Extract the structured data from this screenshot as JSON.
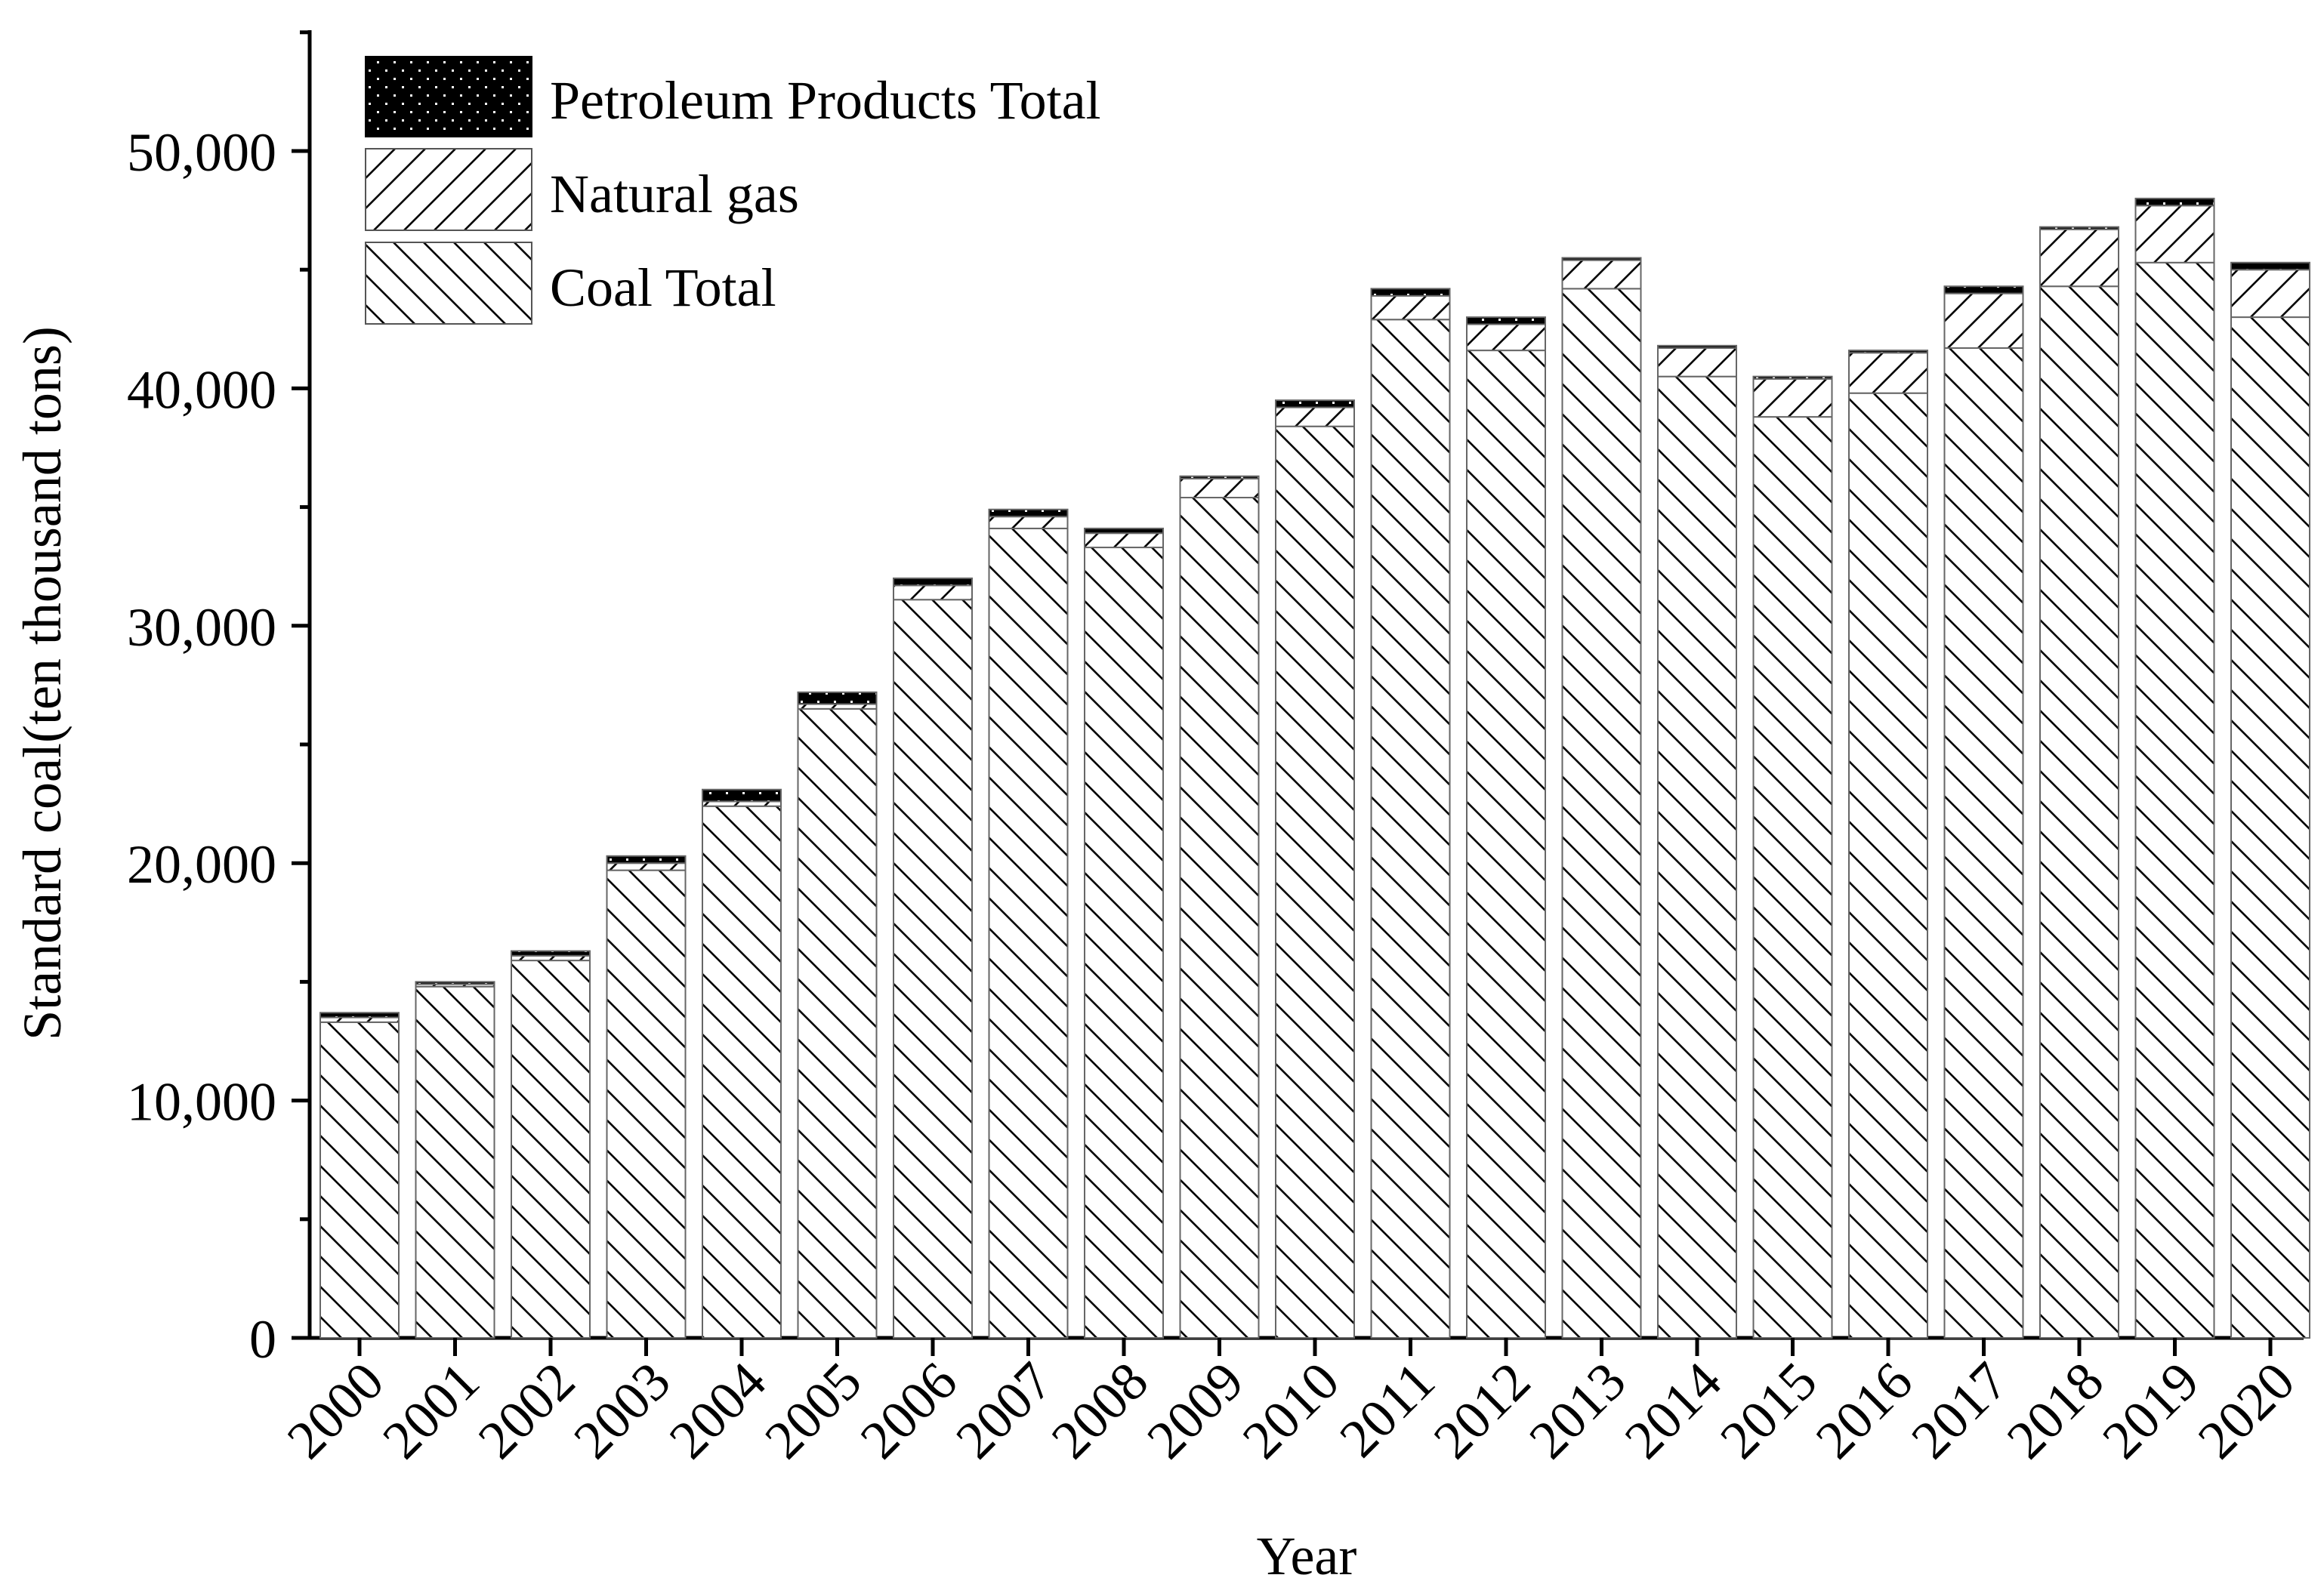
{
  "chart_data": {
    "type": "bar",
    "stacked": true,
    "title": "",
    "xlabel": "Year",
    "ylabel": "Standard coal(ten thousand tons)",
    "ylim": [
      0,
      55000
    ],
    "yticks": [
      0,
      10000,
      20000,
      30000,
      40000,
      50000
    ],
    "ytick_labels": [
      "0",
      "10,000",
      "20,000",
      "30,000",
      "40,000",
      "50,000"
    ],
    "categories": [
      "2000",
      "2001",
      "2002",
      "2003",
      "2004",
      "2005",
      "2006",
      "2007",
      "2008",
      "2009",
      "2010",
      "2011",
      "2012",
      "2013",
      "2014",
      "2015",
      "2016",
      "2017",
      "2018",
      "2019",
      "2020"
    ],
    "legend_position": "top-left",
    "series": [
      {
        "name": "Coal Total",
        "pattern": "backslash-hatch",
        "values": [
          13300,
          14800,
          15900,
          19700,
          22400,
          26500,
          31100,
          34100,
          33300,
          35400,
          38400,
          42900,
          41600,
          44200,
          40500,
          38800,
          39800,
          41700,
          44300,
          45300,
          43000
        ]
      },
      {
        "name": "Natural gas",
        "pattern": "slash-hatch",
        "values": [
          200,
          100,
          200,
          300,
          200,
          200,
          600,
          500,
          600,
          800,
          800,
          1000,
          1100,
          1200,
          1200,
          1600,
          1700,
          2300,
          2400,
          2400,
          2000
        ]
      },
      {
        "name": "Petroleum Products Total",
        "pattern": "dots",
        "values": [
          200,
          100,
          200,
          300,
          500,
          500,
          300,
          300,
          200,
          100,
          300,
          300,
          300,
          100,
          100,
          100,
          100,
          300,
          100,
          300,
          300
        ]
      }
    ],
    "legend_order": [
      "Petroleum Products Total",
      "Natural gas",
      "Coal Total"
    ]
  }
}
